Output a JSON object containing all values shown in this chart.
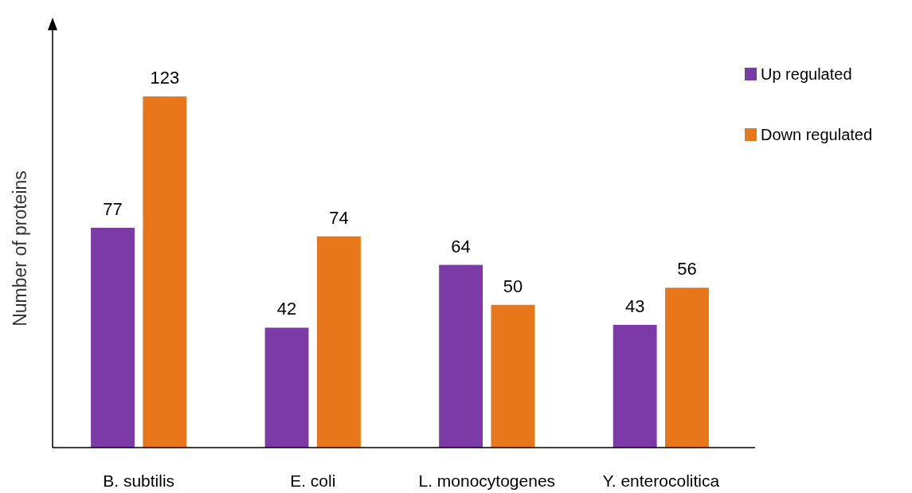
{
  "chart_data": {
    "type": "bar",
    "ylabel": "Number of proteins",
    "categories": [
      "B. subtilis",
      "E. coli",
      "L. monocytogenes",
      "Y. enterocolitica"
    ],
    "series": [
      {
        "name": "Up regulated",
        "color": "#7b3aa6",
        "values": [
          77,
          42,
          64,
          43
        ]
      },
      {
        "name": "Down regulated",
        "color": "#e8761a",
        "values": [
          123,
          74,
          50,
          56
        ]
      }
    ],
    "data_labels": true,
    "legend": "top right"
  }
}
